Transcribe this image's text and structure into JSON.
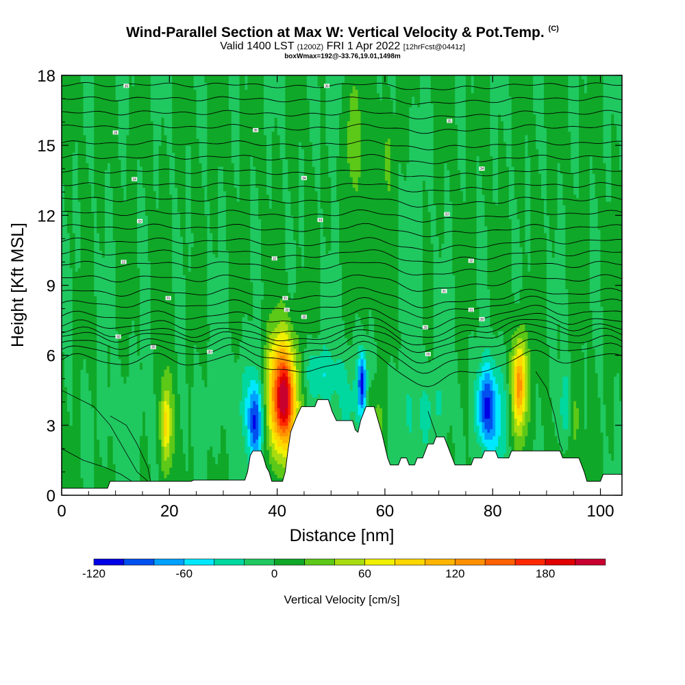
{
  "header": {
    "title_main": "Wind-Parallel Section at Max W: Vertical Velocity & Pot.Temp.",
    "title_copyright": "(C)",
    "valid_prefix": "Valid 1400 LST",
    "valid_utc": "(1200Z)",
    "valid_date": "FRI 1 Apr 2022",
    "forecast_info": "[12hrFcst@0441z]",
    "box_info": "boxWmax=192@-33.76,19.01,1498m"
  },
  "colors": {
    "frame": "#000000",
    "terrain": "#ffffff",
    "background_fill": "#1fb83e",
    "scale": [
      "#0000e6",
      "#0050f0",
      "#00a0ff",
      "#00e8ff",
      "#00d8a0",
      "#20c860",
      "#10a828",
      "#5cc818",
      "#a8dc10",
      "#f0f000",
      "#ffd700",
      "#ffb400",
      "#ff9000",
      "#ff6000",
      "#ff2800",
      "#e00000",
      "#c80030"
    ]
  },
  "chart_data": {
    "type": "heatmap",
    "xlabel": "Distance [nm]",
    "ylabel": "Height [Kft MSL]",
    "xlim": [
      0,
      104
    ],
    "ylim": [
      0,
      18
    ],
    "x_ticks": [
      "0",
      "20",
      "40",
      "60",
      "80",
      "100"
    ],
    "x_tick_values": [
      0,
      20,
      40,
      60,
      80,
      100
    ],
    "y_ticks": [
      "0",
      "3",
      "6",
      "9",
      "12",
      "15",
      "18"
    ],
    "y_tick_values": [
      0,
      3,
      6,
      9,
      12,
      15,
      18
    ],
    "colorbar": {
      "label": "Vertical Velocity [cm/s]",
      "min": -120,
      "max": 210,
      "step": 20,
      "tick_labels": [
        "-120",
        "-60",
        "0",
        "60",
        "120",
        "180"
      ],
      "tick_values": [
        -120,
        -60,
        0,
        60,
        120,
        180
      ]
    },
    "terrain_profile": [
      [
        0,
        0.3
      ],
      [
        8.5,
        0.3
      ],
      [
        9,
        0.6
      ],
      [
        24,
        0.6
      ],
      [
        24.5,
        0.65
      ],
      [
        34,
        0.65
      ],
      [
        34.5,
        1.0
      ],
      [
        35,
        1.7
      ],
      [
        35.5,
        1.9
      ],
      [
        37,
        1.9
      ],
      [
        37.5,
        1.6
      ],
      [
        38,
        1.2
      ],
      [
        38.5,
        1.0
      ],
      [
        39,
        0.6
      ],
      [
        41,
        0.6
      ],
      [
        41.5,
        1.0
      ],
      [
        42,
        1.9
      ],
      [
        42.5,
        2.7
      ],
      [
        43.5,
        3.3
      ],
      [
        44.5,
        3.8
      ],
      [
        47,
        3.8
      ],
      [
        47.5,
        4.1
      ],
      [
        49.5,
        4.1
      ],
      [
        50.2,
        3.6
      ],
      [
        51,
        3.2
      ],
      [
        54,
        3.2
      ],
      [
        54.5,
        2.8
      ],
      [
        55,
        2.7
      ],
      [
        55.5,
        3.2
      ],
      [
        56,
        3.5
      ],
      [
        56.5,
        3.8
      ],
      [
        58,
        3.8
      ],
      [
        58.5,
        3.4
      ],
      [
        59.5,
        2.6
      ],
      [
        60,
        2.1
      ],
      [
        60.5,
        1.6
      ],
      [
        61,
        1.3
      ],
      [
        62.5,
        1.3
      ],
      [
        63,
        1.6
      ],
      [
        64,
        1.6
      ],
      [
        64.5,
        1.3
      ],
      [
        65.5,
        1.3
      ],
      [
        66,
        1.6
      ],
      [
        67,
        1.6
      ],
      [
        67.5,
        1.9
      ],
      [
        68,
        2.2
      ],
      [
        69,
        2.2
      ],
      [
        69.5,
        2.5
      ],
      [
        71,
        2.5
      ],
      [
        71.5,
        2.2
      ],
      [
        72,
        1.9
      ],
      [
        72.5,
        1.6
      ],
      [
        73,
        1.3
      ],
      [
        76,
        1.3
      ],
      [
        76.5,
        1.6
      ],
      [
        78,
        1.6
      ],
      [
        78.5,
        1.9
      ],
      [
        80.5,
        1.9
      ],
      [
        81,
        1.6
      ],
      [
        83,
        1.6
      ],
      [
        83.5,
        1.9
      ],
      [
        92.5,
        1.9
      ],
      [
        93,
        1.6
      ],
      [
        96,
        1.6
      ],
      [
        96.5,
        1.3
      ],
      [
        97,
        1.0
      ],
      [
        97.5,
        0.6
      ],
      [
        100,
        0.6
      ],
      [
        100.5,
        0.9
      ],
      [
        104,
        0.9
      ]
    ],
    "velocity_features": [
      {
        "x": 19.5,
        "z": 3.0,
        "sx": 0.9,
        "sz": 1.7,
        "w": 60
      },
      {
        "x": 19.3,
        "z": 3.1,
        "sx": 0.45,
        "sz": 0.8,
        "w": 40
      },
      {
        "x": 41.0,
        "z": 4.3,
        "sx": 2.0,
        "sz": 1.8,
        "w": 165
      },
      {
        "x": 41.2,
        "z": 4.1,
        "sx": 1.0,
        "sz": 1.1,
        "w": 60
      },
      {
        "x": 36.0,
        "z": 3.0,
        "sx": 0.9,
        "sz": 1.2,
        "w": -95
      },
      {
        "x": 35.0,
        "z": 4.0,
        "sx": 2.0,
        "sz": 1.5,
        "w": -30
      },
      {
        "x": 47.5,
        "z": 5.2,
        "sx": 2.5,
        "sz": 0.9,
        "w": -40
      },
      {
        "x": 55.8,
        "z": 4.8,
        "sx": 0.55,
        "sz": 0.9,
        "w": -100
      },
      {
        "x": 53.5,
        "z": 4.2,
        "sx": 2.5,
        "sz": 1.6,
        "w": -25
      },
      {
        "x": 58.5,
        "z": 2.8,
        "sx": 1.2,
        "sz": 1.2,
        "w": 35
      },
      {
        "x": 64.5,
        "z": 3.3,
        "sx": 2.2,
        "sz": 1.6,
        "w": -22
      },
      {
        "x": 69.5,
        "z": 3.8,
        "sx": 2.0,
        "sz": 1.3,
        "w": -22
      },
      {
        "x": 78.5,
        "z": 3.8,
        "sx": 1.2,
        "sz": 1.2,
        "w": -85
      },
      {
        "x": 80.5,
        "z": 3.5,
        "sx": 1.5,
        "sz": 1.7,
        "w": -50
      },
      {
        "x": 85.0,
        "z": 4.8,
        "sx": 1.1,
        "sz": 1.6,
        "w": 85
      },
      {
        "x": 84.9,
        "z": 4.7,
        "sx": 0.6,
        "sz": 1.0,
        "w": 50
      },
      {
        "x": 93.5,
        "z": 3.7,
        "sx": 0.8,
        "sz": 1.2,
        "w": -50
      },
      {
        "x": 94.8,
        "z": 3.0,
        "sx": 1.0,
        "sz": 1.5,
        "w": 30
      },
      {
        "x": 12.0,
        "z": 3.0,
        "sx": 5.0,
        "sz": 1.9,
        "w": -10
      },
      {
        "x": 28.0,
        "z": 3.5,
        "sx": 4.0,
        "sz": 1.8,
        "w": -8
      },
      {
        "x": 50.5,
        "z": 16.5,
        "sx": 1.0,
        "sz": 1.4,
        "w": -25
      },
      {
        "x": 54.0,
        "z": 15.5,
        "sx": 1.2,
        "sz": 2.0,
        "w": 35
      },
      {
        "x": 60.5,
        "z": 14.5,
        "sx": 1.0,
        "sz": 1.5,
        "w": 22
      },
      {
        "x": 57.5,
        "z": 11.0,
        "sx": 1.2,
        "sz": 3.0,
        "w": 14
      },
      {
        "x": 65.5,
        "z": 12.0,
        "sx": 1.5,
        "sz": 3.0,
        "w": -12
      }
    ],
    "isentrope_heights_left": [
      5.8,
      6.2,
      6.5,
      6.8,
      7.0,
      7.3,
      7.7,
      8.2,
      8.7,
      9.3,
      9.9,
      10.4,
      10.9,
      11.5,
      12.1,
      12.7,
      13.3,
      13.9,
      14.5,
      15.1,
      15.8,
      16.4,
      17.0,
      17.6
    ],
    "isentrope_labels": [
      {
        "x": 12.0,
        "z": 17.55,
        "text": "36"
      },
      {
        "x": 49.2,
        "z": 17.55,
        "text": "36"
      },
      {
        "x": 10.0,
        "z": 15.55,
        "text": "35"
      },
      {
        "x": 36.0,
        "z": 15.65,
        "text": "35"
      },
      {
        "x": 72.0,
        "z": 16.05,
        "text": "35"
      },
      {
        "x": 13.5,
        "z": 13.55,
        "text": "34"
      },
      {
        "x": 45.0,
        "z": 13.6,
        "text": "34"
      },
      {
        "x": 78.0,
        "z": 14.0,
        "text": "34"
      },
      {
        "x": 14.5,
        "z": 11.75,
        "text": "33"
      },
      {
        "x": 48.0,
        "z": 11.8,
        "text": "33"
      },
      {
        "x": 71.5,
        "z": 12.05,
        "text": "33"
      },
      {
        "x": 11.5,
        "z": 10.0,
        "text": "32"
      },
      {
        "x": 39.5,
        "z": 10.15,
        "text": "32"
      },
      {
        "x": 76.0,
        "z": 10.05,
        "text": "32"
      },
      {
        "x": 19.8,
        "z": 8.45,
        "text": "31"
      },
      {
        "x": 41.5,
        "z": 8.45,
        "text": "31"
      },
      {
        "x": 71.0,
        "z": 8.75,
        "text": "31"
      },
      {
        "x": 76.0,
        "z": 7.95,
        "text": "31"
      },
      {
        "x": 41.8,
        "z": 7.95,
        "text": "30"
      },
      {
        "x": 45.0,
        "z": 7.65,
        "text": "30"
      },
      {
        "x": 78.0,
        "z": 7.55,
        "text": "30"
      },
      {
        "x": 10.5,
        "z": 6.8,
        "text": "30"
      },
      {
        "x": 17.0,
        "z": 6.35,
        "text": "30"
      },
      {
        "x": 27.5,
        "z": 6.15,
        "text": "30"
      },
      {
        "x": 67.5,
        "z": 7.2,
        "text": "29"
      },
      {
        "x": 68.0,
        "z": 6.05,
        "text": "29"
      }
    ]
  }
}
